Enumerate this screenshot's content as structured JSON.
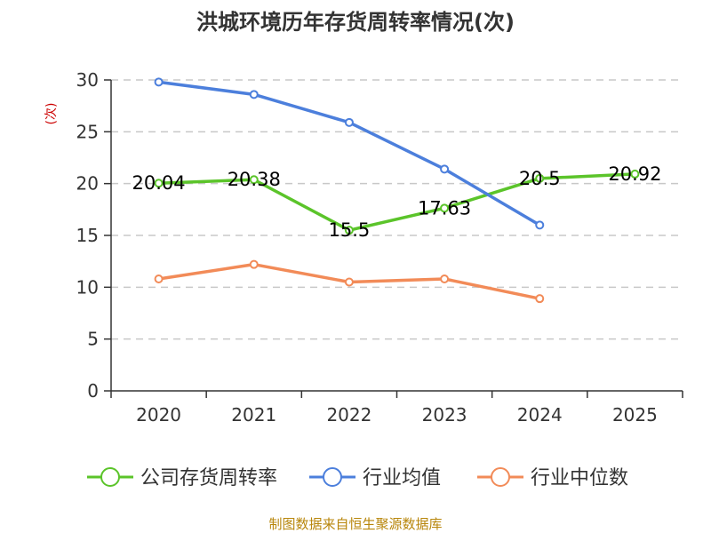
{
  "chart_data": {
    "type": "line",
    "title": "洪城环境历年存货周转率情况(次)",
    "ylabel": "(次)",
    "categories": [
      "2020",
      "2021",
      "2022",
      "2023",
      "2024",
      "2025"
    ],
    "ylim": [
      0,
      30
    ],
    "yticks": [
      0,
      5,
      10,
      15,
      20,
      25,
      30
    ],
    "grid": true,
    "legend_position": "bottom",
    "series": [
      {
        "name": "公司存货周转率",
        "color": "#5bc42a",
        "values": [
          20.04,
          20.38,
          15.5,
          17.63,
          20.5,
          20.92
        ],
        "labels": [
          "20.04",
          "20.38",
          "15.5",
          "17.63",
          "20.5",
          "20.92"
        ]
      },
      {
        "name": "行业均值",
        "color": "#4c7fdc",
        "values": [
          29.8,
          28.6,
          25.9,
          21.4,
          16.0,
          null
        ]
      },
      {
        "name": "行业中位数",
        "color": "#f28b58",
        "values": [
          10.8,
          12.2,
          10.5,
          10.8,
          8.9,
          null
        ]
      }
    ],
    "source": "制图数据来自恒生聚源数据库"
  }
}
